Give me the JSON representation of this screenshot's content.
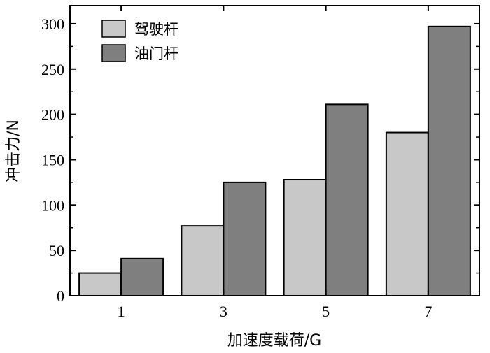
{
  "chart_data": {
    "type": "bar",
    "categories": [
      "1",
      "3",
      "5",
      "7"
    ],
    "series": [
      {
        "name": "驾驶杆",
        "values": [
          25,
          77,
          128,
          180
        ],
        "color": "#c8c8c8"
      },
      {
        "name": "油门杆",
        "values": [
          41,
          125,
          211,
          297
        ],
        "color": "#7f7f7f"
      }
    ],
    "xlabel": "加速度载荷/G",
    "ylabel": "冲击力/N",
    "ylim": [
      0,
      320
    ],
    "yticks": [
      0,
      50,
      100,
      150,
      200,
      250,
      300
    ],
    "grid": false,
    "legend_position": "top-left"
  }
}
